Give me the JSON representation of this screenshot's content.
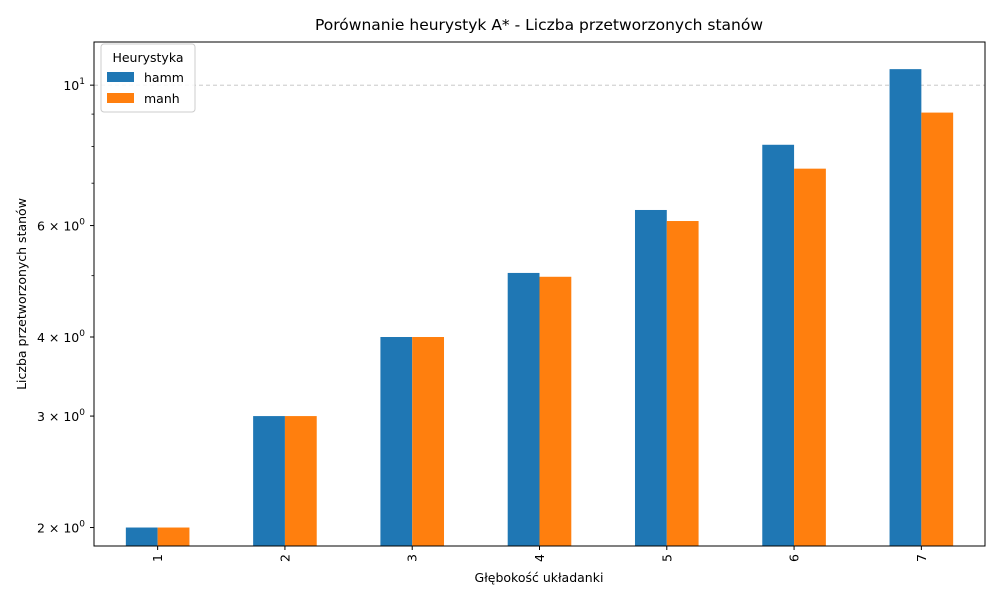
{
  "chart_data": {
    "type": "bar",
    "title": "Porównanie heurystyk A* - Liczba przetworzonych stanów",
    "xlabel": "Głębokość układanki",
    "ylabel": "Liczba przetworzonych stanów",
    "yscale": "log",
    "ylim": [
      1.87,
      11.7
    ],
    "categories": [
      "1",
      "2",
      "3",
      "4",
      "5",
      "6",
      "7"
    ],
    "series": [
      {
        "name": "hamm",
        "color": "#1f77b4",
        "values": [
          2.0,
          3.0,
          4.0,
          5.05,
          6.35,
          8.05,
          10.6
        ]
      },
      {
        "name": "manh",
        "color": "#ff7f0e",
        "values": [
          2.0,
          3.0,
          4.0,
          4.98,
          6.1,
          7.38,
          9.05
        ]
      }
    ],
    "yticks_major": [
      {
        "value": 2,
        "base": "2 × 10",
        "exp": "0"
      },
      {
        "value": 3,
        "base": "3 × 10",
        "exp": "0"
      },
      {
        "value": 4,
        "base": "4 × 10",
        "exp": "0"
      },
      {
        "value": 6,
        "base": "6 × 10",
        "exp": "0"
      },
      {
        "value": 10,
        "base": "10",
        "exp": "1"
      }
    ],
    "yticks_minor": [
      5,
      7,
      8,
      9
    ],
    "grid": "y-major-dashed",
    "legend": {
      "title": "Heurystyka",
      "placement": "top-left"
    }
  }
}
